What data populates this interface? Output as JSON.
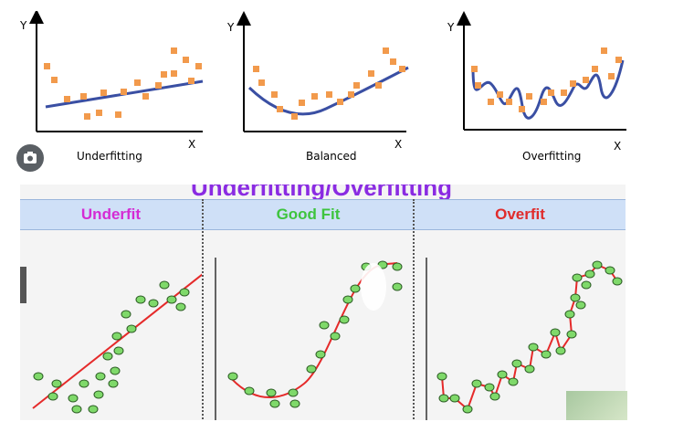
{
  "top_panels": [
    {
      "caption": "Underfitting",
      "y_axis": "Y",
      "x_axis": "X"
    },
    {
      "caption": "Balanced",
      "y_axis": "Y",
      "x_axis": "X"
    },
    {
      "caption": "Overfitting",
      "y_axis": "Y",
      "x_axis": "X"
    }
  ],
  "bottom": {
    "title": "Underfitting/Overfitting",
    "columns": [
      {
        "label": "Underfit",
        "color": "#d42bd4"
      },
      {
        "label": "Good Fit",
        "color": "#3ec43e"
      },
      {
        "label": "Overfit",
        "color": "#e02b2b"
      }
    ]
  },
  "colors": {
    "orange_point": "#f29a4c",
    "blue_curve": "#3a4fa3",
    "green_point": "#7fd96a",
    "red_curve": "#e52a2a"
  },
  "icons": [
    "camera-icon"
  ]
}
